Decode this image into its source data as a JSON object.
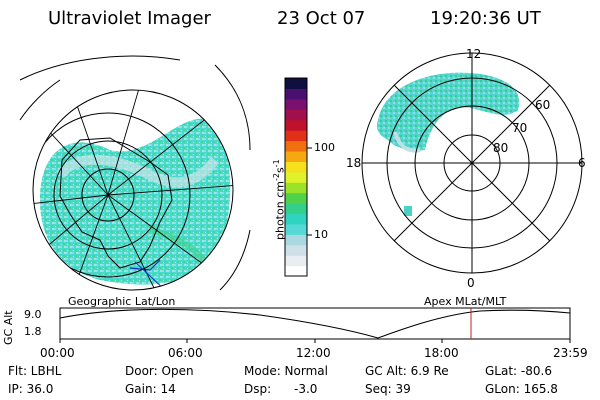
{
  "header": {
    "instrument": "Ultraviolet Imager",
    "date": "23 Oct 07",
    "time": "19:20:36 UT"
  },
  "left_panel": {
    "caption": "Geographic Lat/Lon"
  },
  "right_panel": {
    "caption": "Apex MLat/MLT",
    "mlt_labels": [
      "12",
      "18",
      "6",
      "0"
    ],
    "mlat_labels": [
      "60",
      "70",
      "80"
    ]
  },
  "colorbar": {
    "label": "photon cm",
    "exp1": "-2",
    "s": "s",
    "exp2": "-1",
    "ticks": [
      "100",
      "10"
    ],
    "colors": [
      "#ffffff",
      "#e9eef2",
      "#cfe1e8",
      "#a9d8e0",
      "#55d9d6",
      "#2fd4c1",
      "#34d08a",
      "#4fd24a",
      "#9be22a",
      "#dff22a",
      "#f6e01e",
      "#f5a80f",
      "#f07010",
      "#e03018",
      "#c0102a",
      "#a0104a",
      "#7a1070",
      "#4a1070",
      "#101040"
    ]
  },
  "timeline": {
    "axis_label": "GC Alt",
    "y_top": "9.0",
    "y_bottom": "1.8",
    "x_ticks": [
      "00:00",
      "06:00",
      "12:00",
      "18:00",
      "23:59"
    ],
    "marker_color": "#c02020"
  },
  "info": {
    "filter": "Flt: LBHL",
    "door": "Door: Open",
    "mode": "Mode: Normal",
    "gc_alt": "GC Alt: 6.9 Re",
    "glat": "GLat: -80.6",
    "ip": "IP: 36.0",
    "gain": "Gain: 14",
    "dsp_label": "Dsp:",
    "dsp_value": "-3.0",
    "seq": "Seq: 39",
    "glon": "GLon: 165.8"
  }
}
